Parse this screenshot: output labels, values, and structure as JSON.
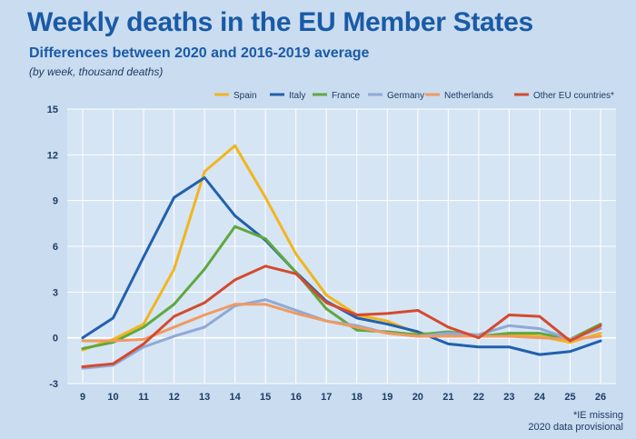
{
  "header": {
    "title": "Weekly deaths in the EU Member States",
    "subtitle": "Differences between  2020 and 2016-2019 average",
    "note": "(by week, thousand deaths)"
  },
  "footnote": {
    "line1": "*IE missing",
    "line2": "2020 data provisional"
  },
  "chart_data": {
    "type": "line",
    "title": "Weekly deaths in the EU Member States",
    "subtitle": "Differences between  2020 and 2016-2019 average",
    "xlabel": "",
    "ylabel": "",
    "x": [
      9,
      10,
      11,
      12,
      13,
      14,
      15,
      16,
      17,
      18,
      19,
      20,
      21,
      22,
      23,
      24,
      25,
      26
    ],
    "ylim": [
      -3,
      15
    ],
    "yticks": [
      -3,
      0,
      3,
      6,
      9,
      12,
      15
    ],
    "grid": true,
    "legend_position": "top",
    "series": [
      {
        "name": "Spain",
        "color": "#f2b51f",
        "values": [
          -0.8,
          -0.1,
          0.9,
          4.5,
          10.9,
          12.6,
          9.2,
          5.5,
          2.8,
          1.5,
          1.1,
          0.3,
          0.2,
          0.1,
          0.2,
          0.1,
          -0.3,
          0.3
        ]
      },
      {
        "name": "Italy",
        "color": "#2160ad",
        "values": [
          0.0,
          1.3,
          5.3,
          9.2,
          10.5,
          8.0,
          6.4,
          4.3,
          2.4,
          1.3,
          0.9,
          0.4,
          -0.4,
          -0.6,
          -0.6,
          -1.1,
          -0.9,
          -0.2
        ]
      },
      {
        "name": "France",
        "color": "#5fa83f",
        "values": [
          -0.7,
          -0.3,
          0.7,
          2.2,
          4.5,
          7.3,
          6.5,
          4.3,
          1.9,
          0.5,
          0.4,
          0.2,
          0.4,
          0.1,
          0.3,
          0.3,
          -0.1,
          0.9
        ]
      },
      {
        "name": "Germany",
        "color": "#8fa9d6",
        "values": [
          -2.0,
          -1.8,
          -0.6,
          0.1,
          0.7,
          2.1,
          2.5,
          1.8,
          1.1,
          0.8,
          0.3,
          0.1,
          0.3,
          0.2,
          0.8,
          0.6,
          -0.1,
          0.6
        ]
      },
      {
        "name": "Netherlands",
        "color": "#f09a60",
        "values": [
          -0.2,
          -0.2,
          -0.1,
          0.7,
          1.5,
          2.2,
          2.2,
          1.6,
          1.1,
          0.7,
          0.3,
          0.1,
          0.1,
          0.1,
          0.1,
          0.0,
          -0.1,
          0.1
        ]
      },
      {
        "name": "Other EU countries*",
        "color": "#d44a2e",
        "values": [
          -1.9,
          -1.7,
          -0.4,
          1.4,
          2.3,
          3.8,
          4.7,
          4.2,
          2.3,
          1.5,
          1.6,
          1.8,
          0.7,
          0.0,
          1.5,
          1.4,
          -0.2,
          0.8
        ]
      }
    ]
  }
}
